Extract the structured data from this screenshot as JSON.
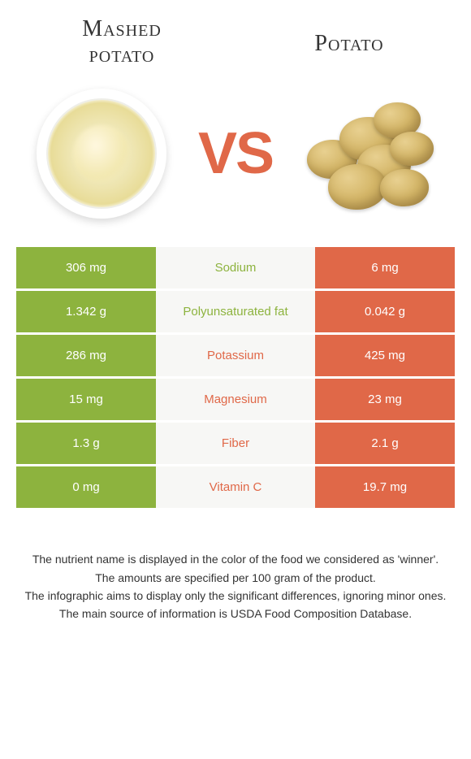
{
  "left_food": {
    "title_line1": "Mashed",
    "title_line2": "potato"
  },
  "right_food": {
    "title": "Potato"
  },
  "vs_label": "VS",
  "colors": {
    "left_column": "#8db33e",
    "right_column": "#e06848",
    "label_bg": "#f7f7f5",
    "vs_text": "#e06848",
    "value_text": "#ffffff",
    "label_left_winner": "#8db33e",
    "label_right_winner": "#e06848"
  },
  "rows": [
    {
      "label": "Sodium",
      "left": "306 mg",
      "right": "6 mg",
      "winner": "left"
    },
    {
      "label": "Polyunsaturated fat",
      "left": "1.342 g",
      "right": "0.042 g",
      "winner": "left"
    },
    {
      "label": "Potassium",
      "left": "286 mg",
      "right": "425 mg",
      "winner": "right"
    },
    {
      "label": "Magnesium",
      "left": "15 mg",
      "right": "23 mg",
      "winner": "right"
    },
    {
      "label": "Fiber",
      "left": "1.3 g",
      "right": "2.1 g",
      "winner": "right"
    },
    {
      "label": "Vitamin C",
      "left": "0 mg",
      "right": "19.7 mg",
      "winner": "right"
    }
  ],
  "footnotes": [
    "The nutrient name is displayed in the color of the food we considered as 'winner'.",
    "The amounts are specified per 100 gram of the product.",
    "The infographic aims to display only the significant differences, ignoring minor ones.",
    "The main source of information is USDA Food Composition Database."
  ]
}
